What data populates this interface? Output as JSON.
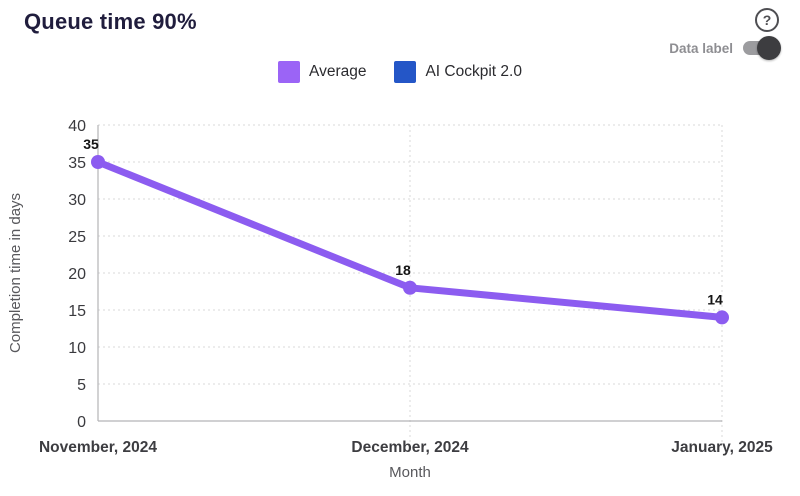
{
  "header": {
    "title": "Queue time 90%",
    "help_icon": "question-mark-circle-icon",
    "help_glyph": "?",
    "data_label_toggle": {
      "label": "Data label",
      "state": "on"
    }
  },
  "legend": {
    "position": "top-center",
    "items": [
      {
        "label": "Average",
        "color": "#9b64f6"
      },
      {
        "label": "AI Cockpit 2.0",
        "color": "#2456c7"
      }
    ]
  },
  "chart_data": {
    "type": "line",
    "title": "Queue time 90%",
    "categories": [
      "November, 2024",
      "December, 2024",
      "January, 2025"
    ],
    "series": [
      {
        "name": "Average",
        "color": "#8c5cf0",
        "values": [
          35,
          18,
          14
        ],
        "data_labels": [
          "35",
          "18",
          "14"
        ]
      }
    ],
    "xlabel": "Month",
    "ylabel": "Completion time in days",
    "ylim": [
      0,
      40
    ],
    "ytick_step": 5,
    "yticks": [
      0,
      5,
      10,
      15,
      20,
      25,
      30,
      35,
      40
    ],
    "grid": true,
    "gridline_style": "dotted",
    "data_labels_visible": true,
    "legend_position": "top"
  },
  "colors": {
    "title_text": "#201d3d",
    "tick_text": "#3a3a3e",
    "axis_line": "#b3b3b6",
    "gridline": "#d8d8da",
    "toggle_track": "#9c9c9f",
    "toggle_thumb": "#3d3d40"
  }
}
